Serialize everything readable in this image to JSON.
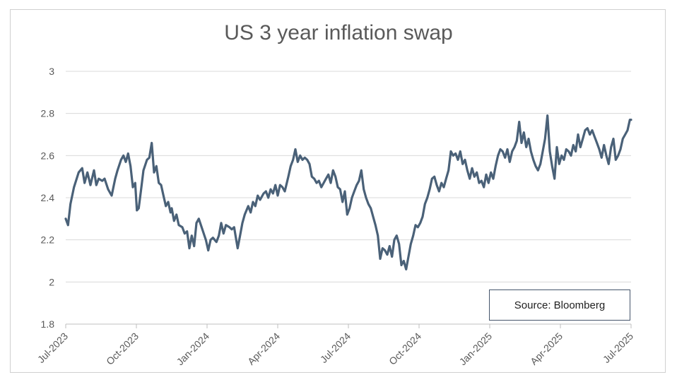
{
  "chart_data": {
    "type": "line",
    "title": "US 3 year inflation swap",
    "xlabel": "",
    "ylabel": "",
    "ylim": [
      1.8,
      3
    ],
    "yticks": [
      "1.8",
      "2",
      "2.2",
      "2.4",
      "2.6",
      "2.8",
      "3"
    ],
    "xticks": [
      "Jul-2023",
      "Oct-2023",
      "Jan-2024",
      "Apr-2024",
      "Jul-2024",
      "Oct-2024",
      "Jan-2025",
      "Apr-2025",
      "Jul-2025"
    ],
    "grid": "horizontal",
    "line_color": "#4a6178",
    "annotation": "Source: Bloomberg",
    "series": [
      {
        "x": [
          0,
          0.1,
          0.2,
          0.35,
          0.55,
          0.7,
          0.8,
          0.92,
          1.05,
          1.2,
          1.3,
          1.4,
          1.55,
          1.65,
          1.8,
          1.95,
          2.1,
          2.2,
          2.35,
          2.45,
          2.55,
          2.65,
          2.75,
          2.85,
          2.95,
          3.02,
          3.1,
          3.2,
          3.3,
          3.45,
          3.55,
          3.65,
          3.75,
          3.85,
          3.95,
          4.05,
          4.15,
          4.25,
          4.35,
          4.45,
          4.5,
          4.6,
          4.7,
          4.8,
          4.95,
          5.05,
          5.15,
          5.25,
          5.35,
          5.45,
          5.55,
          5.65,
          5.8,
          5.95,
          6.05,
          6.15,
          6.25,
          6.4,
          6.5,
          6.6,
          6.7,
          6.8,
          6.95,
          7.05,
          7.15,
          7.3,
          7.4,
          7.5,
          7.6,
          7.75,
          7.85,
          7.95,
          8.05,
          8.15,
          8.25,
          8.4,
          8.5,
          8.6,
          8.7,
          8.8,
          8.9,
          9.0,
          9.1,
          9.2,
          9.3,
          9.45,
          9.55,
          9.65,
          9.75,
          9.85,
          9.95,
          10.05,
          10.15,
          10.25,
          10.35,
          10.45,
          10.55,
          10.65,
          10.75,
          10.85,
          10.95,
          11.05,
          11.15,
          11.25,
          11.35,
          11.45,
          11.55,
          11.65,
          11.75,
          11.85,
          11.95,
          12.05,
          12.15,
          12.25,
          12.35,
          12.45,
          12.55,
          12.65,
          12.75,
          12.85,
          12.95,
          13.05,
          13.15,
          13.25,
          13.35,
          13.45,
          13.55,
          13.65,
          13.75,
          13.85,
          13.95,
          14.05,
          14.15,
          14.25,
          14.35,
          14.45,
          14.55,
          14.65,
          14.75,
          14.85,
          14.95,
          15.05,
          15.15,
          15.25,
          15.35,
          15.45,
          15.55,
          15.65,
          15.75,
          15.85,
          15.95,
          16.05,
          16.15,
          16.25,
          16.35,
          16.45,
          16.55,
          16.65,
          16.75,
          16.85,
          16.95,
          17.05,
          17.15,
          17.25,
          17.35,
          17.45,
          17.55,
          17.65,
          17.75,
          17.85,
          17.95,
          18.05,
          18.15,
          18.25,
          18.35,
          18.45,
          18.55,
          18.65,
          18.75,
          18.85,
          18.95,
          19.05,
          19.15,
          19.25,
          19.35,
          19.45,
          19.55,
          19.65,
          19.75,
          19.85,
          19.95,
          20.05,
          20.15,
          20.25,
          20.35,
          20.45,
          20.55,
          20.65,
          20.75,
          20.85,
          20.95,
          21.05,
          21.15,
          21.25,
          21.35,
          21.45,
          21.55,
          21.65,
          21.75,
          21.85,
          21.95,
          22.05,
          22.15,
          22.25,
          22.35,
          22.45,
          22.55,
          22.65,
          22.75,
          22.85,
          22.95,
          23.05,
          23.15,
          23.25,
          23.35,
          23.45,
          23.55,
          23.65,
          23.75,
          23.85,
          23.95,
          24.0
        ],
        "values": [
          2.3,
          2.27,
          2.37,
          2.45,
          2.52,
          2.54,
          2.47,
          2.52,
          2.46,
          2.53,
          2.46,
          2.49,
          2.48,
          2.49,
          2.44,
          2.41,
          2.49,
          2.53,
          2.58,
          2.6,
          2.57,
          2.61,
          2.55,
          2.45,
          2.47,
          2.34,
          2.35,
          2.44,
          2.53,
          2.58,
          2.59,
          2.66,
          2.52,
          2.55,
          2.47,
          2.46,
          2.41,
          2.36,
          2.38,
          2.33,
          2.35,
          2.29,
          2.32,
          2.27,
          2.26,
          2.23,
          2.24,
          2.16,
          2.22,
          2.17,
          2.28,
          2.3,
          2.25,
          2.2,
          2.15,
          2.2,
          2.21,
          2.19,
          2.22,
          2.28,
          2.23,
          2.27,
          2.26,
          2.25,
          2.26,
          2.16,
          2.22,
          2.28,
          2.32,
          2.36,
          2.33,
          2.38,
          2.36,
          2.41,
          2.39,
          2.42,
          2.43,
          2.4,
          2.44,
          2.42,
          2.46,
          2.41,
          2.46,
          2.45,
          2.43,
          2.5,
          2.55,
          2.58,
          2.63,
          2.57,
          2.6,
          2.58,
          2.59,
          2.58,
          2.56,
          2.5,
          2.49,
          2.47,
          2.48,
          2.45,
          2.47,
          2.49,
          2.51,
          2.47,
          2.53,
          2.5,
          2.45,
          2.44,
          2.38,
          2.43,
          2.32,
          2.35,
          2.4,
          2.43,
          2.46,
          2.48,
          2.53,
          2.44,
          2.4,
          2.37,
          2.35,
          2.31,
          2.27,
          2.22,
          2.11,
          2.16,
          2.15,
          2.13,
          2.17,
          2.12,
          2.2,
          2.22,
          2.18,
          2.08,
          2.1,
          2.06,
          2.12,
          2.18,
          2.22,
          2.27,
          2.26,
          2.28,
          2.31,
          2.37,
          2.4,
          2.44,
          2.49,
          2.5,
          2.46,
          2.43,
          2.47,
          2.45,
          2.49,
          2.53,
          2.62,
          2.6,
          2.61,
          2.58,
          2.62,
          2.56,
          2.58,
          2.53,
          2.49,
          2.54,
          2.5,
          2.52,
          2.47,
          2.48,
          2.45,
          2.51,
          2.47,
          2.52,
          2.49,
          2.55,
          2.6,
          2.63,
          2.62,
          2.59,
          2.63,
          2.57,
          2.62,
          2.64,
          2.67,
          2.76,
          2.66,
          2.71,
          2.64,
          2.68,
          2.62,
          2.58,
          2.55,
          2.53,
          2.56,
          2.62,
          2.68,
          2.79,
          2.62,
          2.55,
          2.49,
          2.64,
          2.56,
          2.6,
          2.58,
          2.63,
          2.62,
          2.6,
          2.65,
          2.62,
          2.7,
          2.64,
          2.68,
          2.72,
          2.73,
          2.7,
          2.72,
          2.69,
          2.66,
          2.63,
          2.59,
          2.65,
          2.6,
          2.56,
          2.64,
          2.68,
          2.58,
          2.6,
          2.63,
          2.68,
          2.7,
          2.72,
          2.77,
          2.77
        ]
      }
    ]
  }
}
